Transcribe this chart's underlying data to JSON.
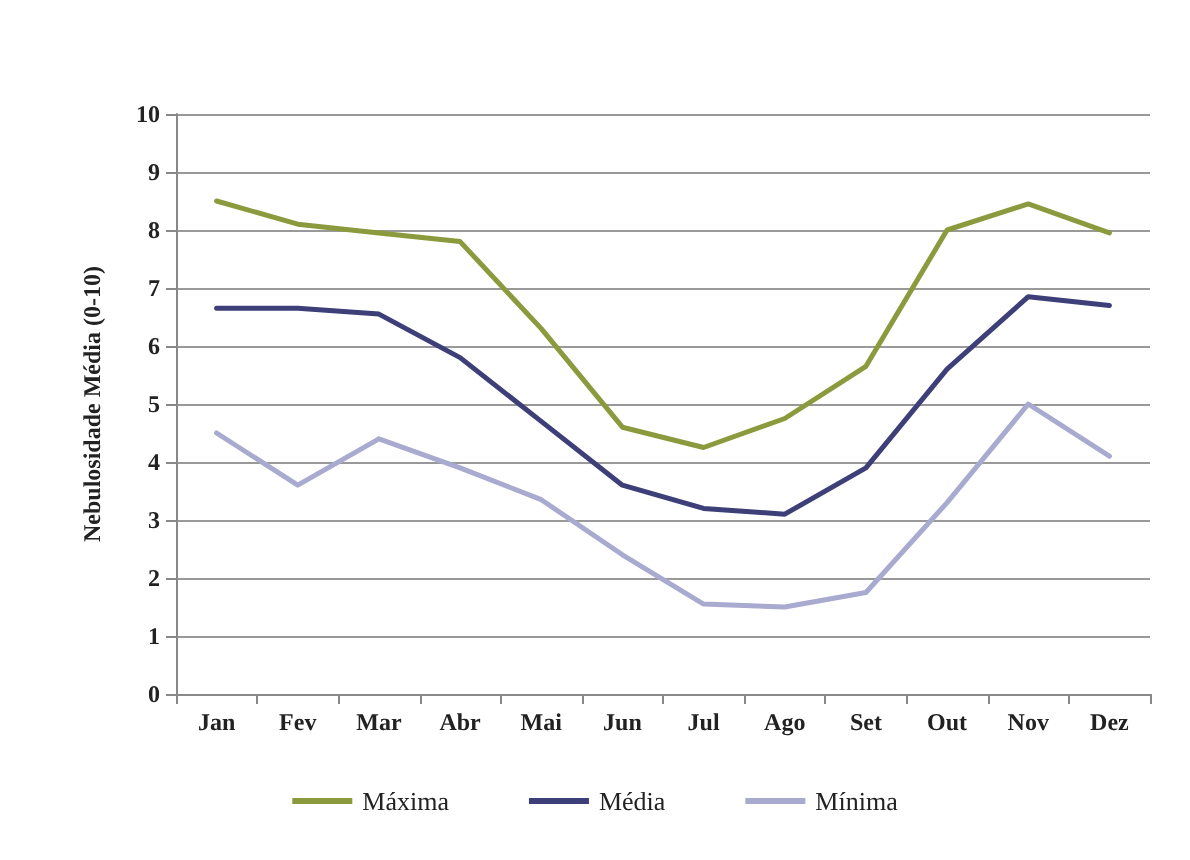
{
  "chart_data": {
    "type": "line",
    "ylabel": "Nebulosidade Média (0-10)",
    "categories": [
      "Jan",
      "Fev",
      "Mar",
      "Abr",
      "Mai",
      "Jun",
      "Jul",
      "Ago",
      "Set",
      "Out",
      "Nov",
      "Dez"
    ],
    "series": [
      {
        "name": "Máxima",
        "color": "#8c9a3e",
        "values": [
          8.5,
          8.1,
          7.95,
          7.8,
          6.3,
          4.6,
          4.25,
          4.75,
          5.65,
          8.0,
          8.45,
          7.95
        ]
      },
      {
        "name": "Média",
        "color": "#3d3f78",
        "values": [
          6.65,
          6.65,
          6.55,
          5.8,
          4.7,
          3.6,
          3.2,
          3.1,
          3.9,
          5.6,
          6.85,
          6.7
        ]
      },
      {
        "name": "Mínima",
        "color": "#a9aad0",
        "values": [
          4.5,
          3.6,
          4.4,
          3.9,
          3.35,
          2.4,
          1.55,
          1.5,
          1.75,
          3.3,
          5.0,
          4.1
        ]
      }
    ],
    "ylim": [
      0,
      10
    ],
    "yticks": [
      0,
      1,
      2,
      3,
      4,
      5,
      6,
      7,
      8,
      9,
      10
    ],
    "grid": "y",
    "legend": "bottom",
    "marker": "none",
    "line_style": "solid"
  }
}
